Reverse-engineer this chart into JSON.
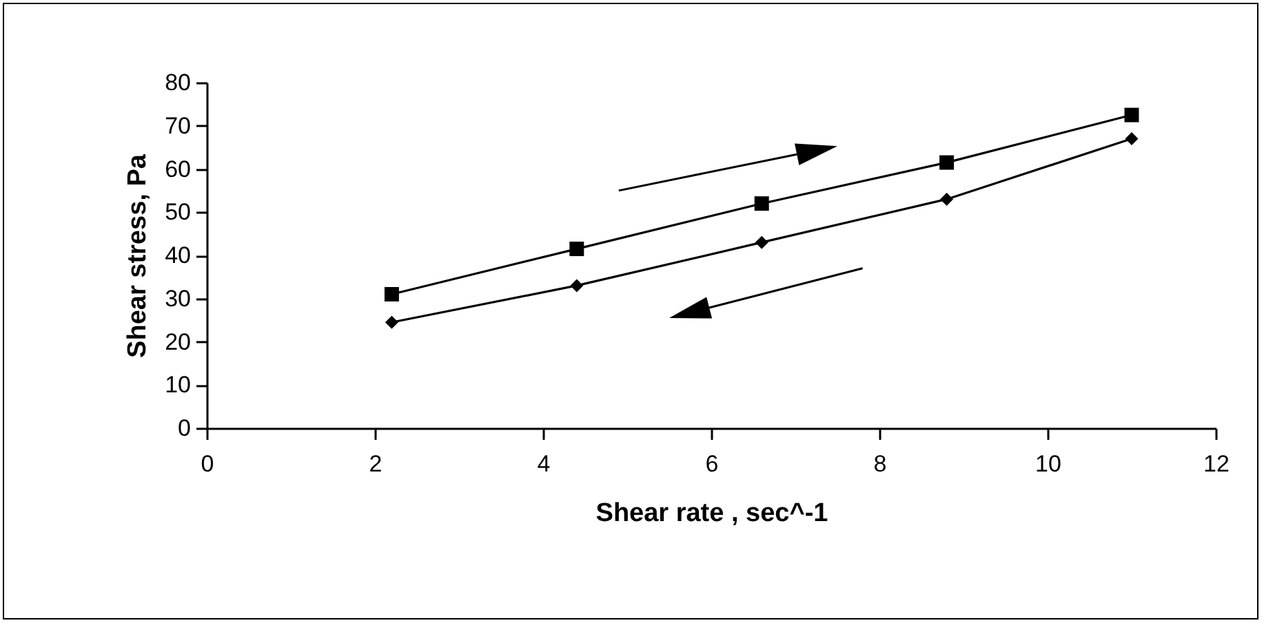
{
  "chart_data": {
    "type": "line",
    "xlabel": "Shear rate , sec^-1",
    "ylabel": "Shear stress, Pa",
    "x": [
      2.2,
      4.4,
      6.6,
      8.8,
      11
    ],
    "series": [
      {
        "color": "#000000",
        "marker": "square",
        "values": [
          31,
          41.5,
          52,
          61.5,
          72.5
        ]
      },
      {
        "color": "#000000",
        "marker": "diamond",
        "values": [
          24.5,
          33,
          43,
          53,
          67
        ]
      }
    ],
    "xlim": [
      0,
      12
    ],
    "xticks": [
      0,
      2,
      4,
      6,
      8,
      10,
      12
    ],
    "ylim": [
      0,
      80
    ],
    "yticks": [
      0,
      10,
      20,
      30,
      40,
      50,
      60,
      70,
      80
    ],
    "grid": false
  }
}
